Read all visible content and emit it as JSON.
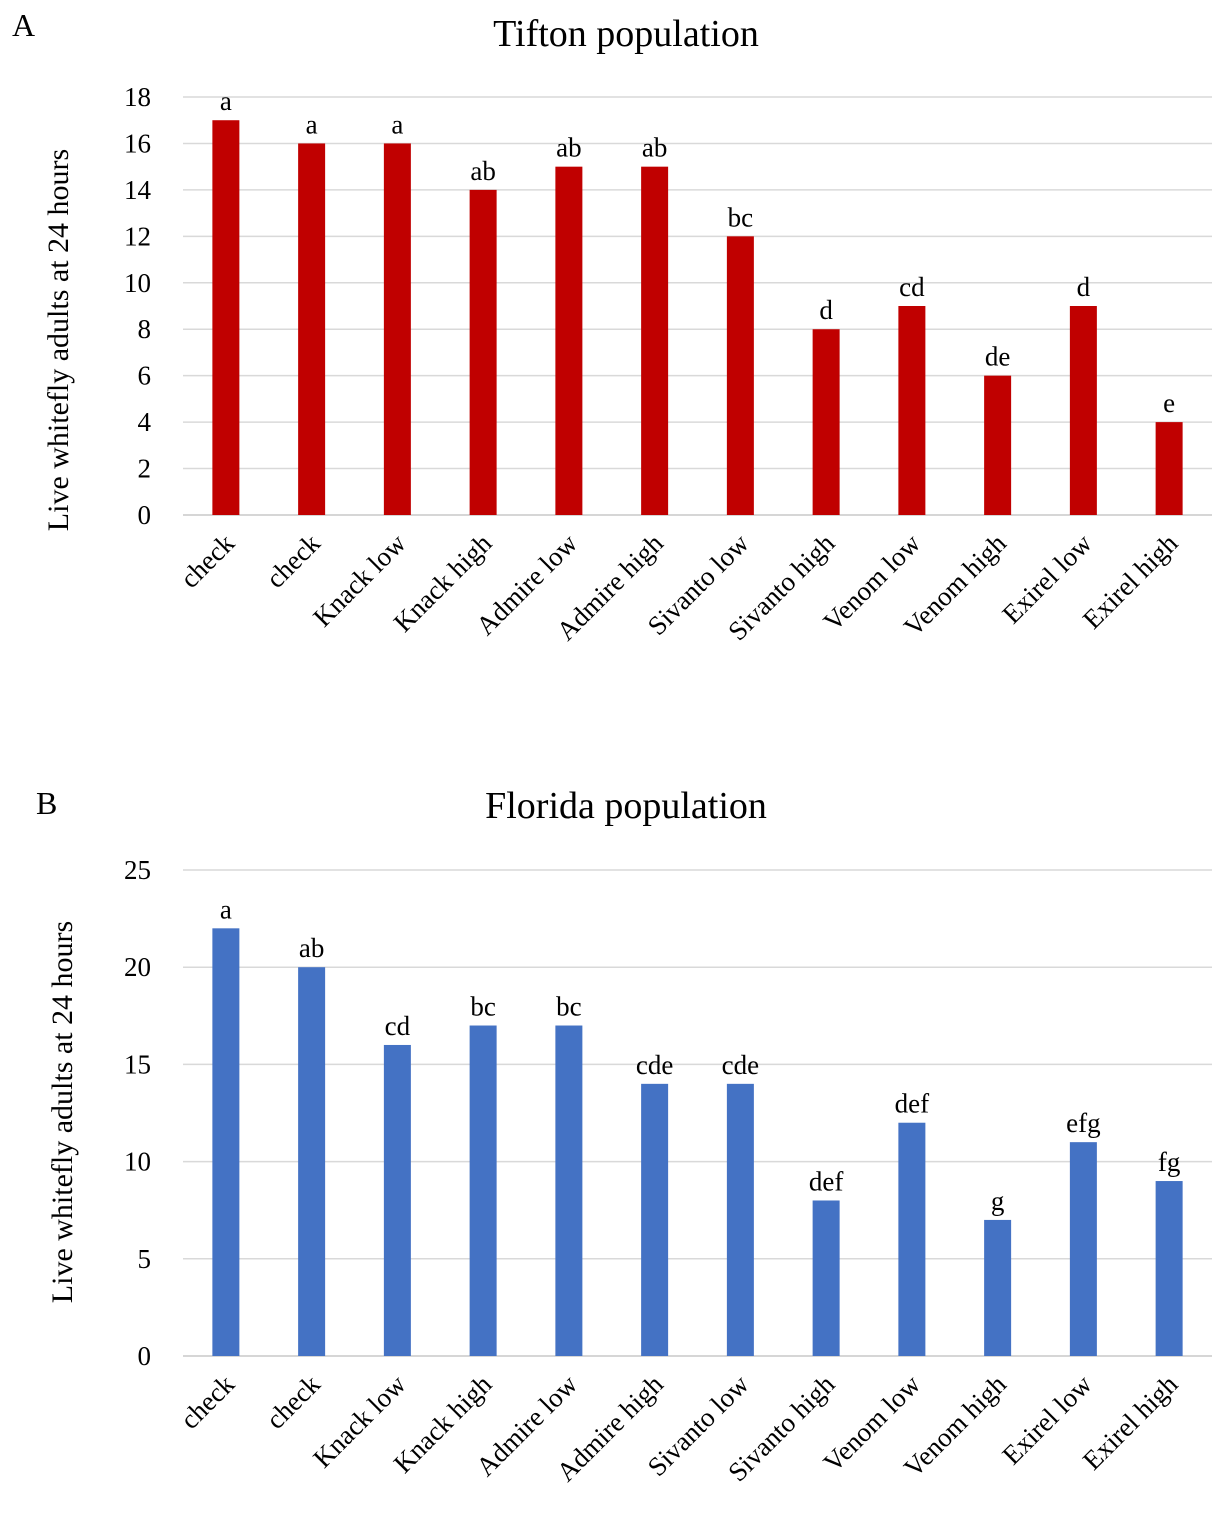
{
  "chart_data": [
    {
      "panel": "A",
      "type": "bar",
      "title": "Tifton population",
      "ylabel": "Live whitefly adults at 24 hours",
      "xlabel": "",
      "ylim": [
        0,
        18
      ],
      "yticks": [
        0,
        2,
        4,
        6,
        8,
        10,
        12,
        14,
        16,
        18
      ],
      "grid": true,
      "color": "#C00000",
      "categories": [
        "check",
        "check",
        "Knack low",
        "Knack high",
        "Admire low",
        "Admire high",
        "Sivanto low",
        "Sivanto high",
        "Venom low",
        "Venom high",
        "Exirel low",
        "Exirel high"
      ],
      "values": [
        17,
        16,
        16,
        14,
        15,
        15,
        12,
        8,
        9,
        6,
        9,
        4
      ],
      "annotations": [
        "a",
        "a",
        "a",
        "ab",
        "ab",
        "ab",
        "bc",
        "d",
        "cd",
        "de",
        "d",
        "e"
      ]
    },
    {
      "panel": "B",
      "type": "bar",
      "title": "Florida population",
      "ylabel": "Live whitefly adults at 24 hours",
      "xlabel": "",
      "ylim": [
        0,
        25
      ],
      "yticks": [
        0,
        5,
        10,
        15,
        20,
        25
      ],
      "grid": true,
      "color": "#4472C4",
      "categories": [
        "check",
        "check",
        "Knack low",
        "Knack high",
        "Admire low",
        "Admire high",
        "Sivanto low",
        "Sivanto high",
        "Venom low",
        "Venom high",
        "Exirel low",
        "Exirel high"
      ],
      "values": [
        22,
        20,
        16,
        17,
        17,
        14,
        14,
        8,
        12,
        7,
        11,
        9
      ],
      "annotations": [
        "a",
        "ab",
        "cd",
        "bc",
        "bc",
        "cde",
        "cde",
        "def",
        "def",
        "g",
        "efg",
        "fg"
      ]
    }
  ]
}
